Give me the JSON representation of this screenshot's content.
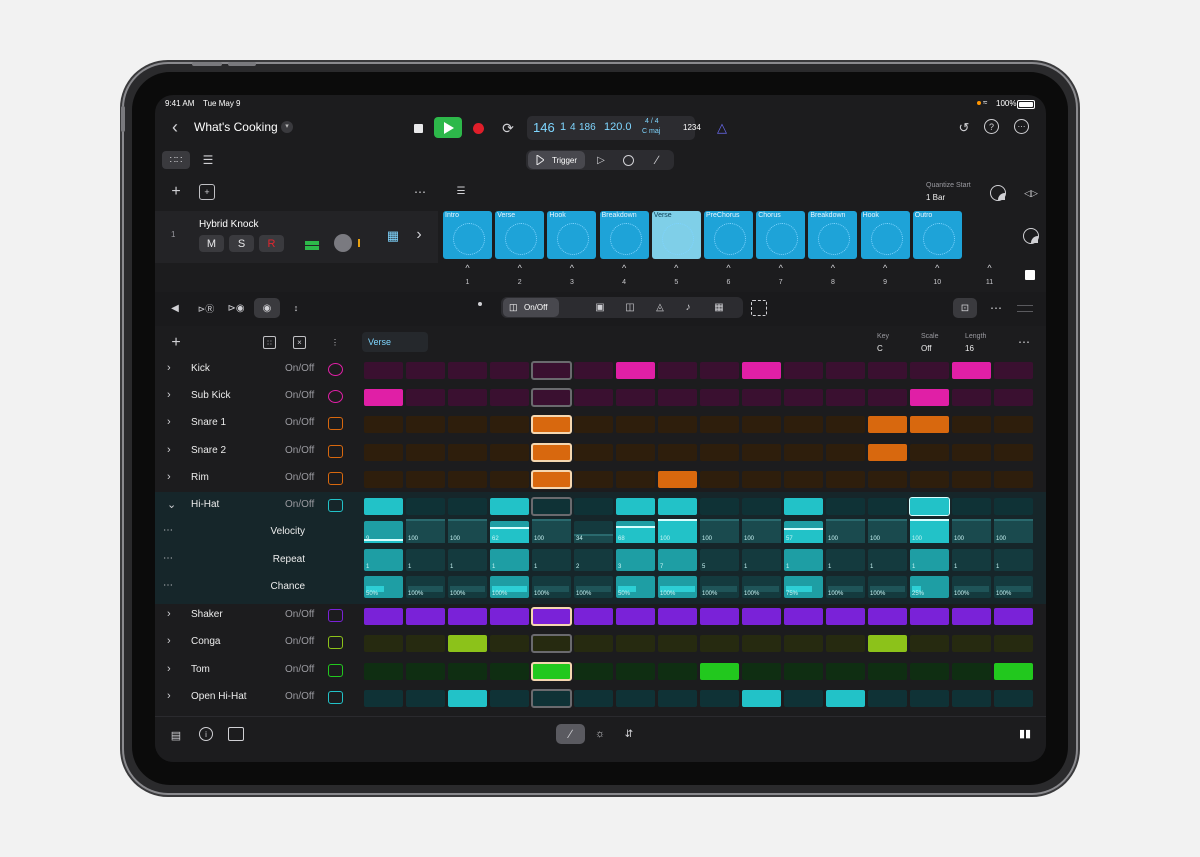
{
  "status": {
    "time": "9:41 AM",
    "date": "Tue May 9",
    "battery": "100%"
  },
  "header": {
    "project_title": "What's Cooking",
    "lcd": {
      "bar": "146",
      "beat": "1",
      "div": "4",
      "tick": "186",
      "tempo": "120.0",
      "sig_top": "4 / 4",
      "key": "C maj"
    },
    "count_in": "1234"
  },
  "modes": {
    "trigger": "Trigger"
  },
  "quantize": {
    "label": "Quantize Start",
    "value": "1 Bar"
  },
  "track": {
    "number": "1",
    "name": "Hybrid Knock",
    "mute": "M",
    "solo": "S",
    "record": "R"
  },
  "scenes": [
    {
      "label": "Intro",
      "num": "1"
    },
    {
      "label": "Verse",
      "num": "2"
    },
    {
      "label": "Hook",
      "num": "3"
    },
    {
      "label": "Breakdown",
      "num": "4"
    },
    {
      "label": "Verse",
      "num": "5"
    },
    {
      "label": "PreChorus",
      "num": "6"
    },
    {
      "label": "Chorus",
      "num": "7"
    },
    {
      "label": "Breakdown",
      "num": "8"
    },
    {
      "label": "Hook",
      "num": "9"
    },
    {
      "label": "Outro",
      "num": "10"
    },
    {
      "label": "",
      "num": "11"
    }
  ],
  "editor": {
    "onoff_segment": "On/Off",
    "pattern_name": "Verse",
    "key_label": "Key",
    "key_value": "C",
    "scale_label": "Scale",
    "scale_value": "Off",
    "length_label": "Length",
    "length_value": "16"
  },
  "rows": [
    {
      "name": "Kick",
      "mode": "On/Off",
      "icon": "kick-drum-icon"
    },
    {
      "name": "Sub Kick",
      "mode": "On/Off",
      "icon": "sub-kick-icon"
    },
    {
      "name": "Snare 1",
      "mode": "On/Off",
      "icon": "snare-drum-icon"
    },
    {
      "name": "Snare 2",
      "mode": "On/Off",
      "icon": "snare-drum-icon"
    },
    {
      "name": "Rim",
      "mode": "On/Off",
      "icon": "snare-drum-icon"
    },
    {
      "name": "Hi-Hat",
      "mode": "On/Off",
      "icon": "hi-hat-icon"
    },
    {
      "name": "Shaker",
      "mode": "On/Off",
      "icon": "shaker-icon"
    },
    {
      "name": "Conga",
      "mode": "On/Off",
      "icon": "conga-icon"
    },
    {
      "name": "Tom",
      "mode": "On/Off",
      "icon": "tom-icon"
    },
    {
      "name": "Open Hi-Hat",
      "mode": "On/Off",
      "icon": "hi-hat-icon"
    }
  ],
  "subrows": {
    "velocity": "Velocity",
    "repeat": "Repeat",
    "chance": "Chance"
  },
  "velocity_values": [
    "9",
    "100",
    "100",
    "62",
    "100",
    "34",
    "68",
    "100",
    "100",
    "100",
    "57",
    "100",
    "100",
    "100",
    "100",
    "100"
  ],
  "repeat_values": [
    "1",
    "1",
    "1",
    "1",
    "1",
    "2",
    "3",
    "7",
    "5",
    "1",
    "1",
    "1",
    "1",
    "1",
    "1",
    "1"
  ],
  "chance_values": [
    "50%",
    "100%",
    "100%",
    "100%",
    "100%",
    "100%",
    "50%",
    "100%",
    "100%",
    "100%",
    "75%",
    "100%",
    "100%",
    "25%",
    "100%",
    "100%"
  ],
  "colors": {
    "kick": "#e01fa6",
    "snare": "#d8680e",
    "hihat": "#22c2c8",
    "shaker": "#7a22d8",
    "conga": "#8cc21a",
    "tom": "#22c81e",
    "play": "#2db84a",
    "record": "#e01e2a",
    "accent": "#6a6af0"
  },
  "pattern": {
    "kick": [
      0,
      0,
      0,
      0,
      0,
      0,
      1,
      0,
      0,
      1,
      0,
      0,
      0,
      0,
      1,
      0
    ],
    "subkick": [
      1,
      0,
      0,
      0,
      0,
      0,
      0,
      0,
      0,
      0,
      0,
      0,
      0,
      1,
      0,
      0
    ],
    "snare1": [
      0,
      0,
      0,
      0,
      1,
      0,
      0,
      0,
      0,
      0,
      0,
      0,
      1,
      1,
      0,
      0
    ],
    "snare2": [
      0,
      0,
      0,
      0,
      1,
      0,
      0,
      0,
      0,
      0,
      0,
      0,
      1,
      0,
      0,
      0
    ],
    "rim": [
      0,
      0,
      0,
      0,
      1,
      0,
      0,
      1,
      0,
      0,
      0,
      0,
      0,
      0,
      0,
      0
    ],
    "hihat": [
      1,
      0,
      0,
      1,
      0,
      0,
      1,
      1,
      0,
      0,
      1,
      0,
      0,
      1,
      0,
      0
    ],
    "shaker": [
      1,
      1,
      1,
      1,
      1,
      1,
      1,
      1,
      1,
      1,
      1,
      1,
      1,
      1,
      1,
      1
    ],
    "conga": [
      0,
      0,
      1,
      0,
      0,
      0,
      0,
      0,
      0,
      0,
      0,
      0,
      1,
      0,
      0,
      0
    ],
    "tom": [
      0,
      0,
      0,
      0,
      1,
      0,
      0,
      0,
      1,
      0,
      0,
      0,
      0,
      0,
      0,
      1
    ],
    "openhh": [
      0,
      0,
      1,
      0,
      0,
      0,
      0,
      0,
      0,
      1,
      0,
      1,
      0,
      0,
      0,
      0
    ]
  }
}
